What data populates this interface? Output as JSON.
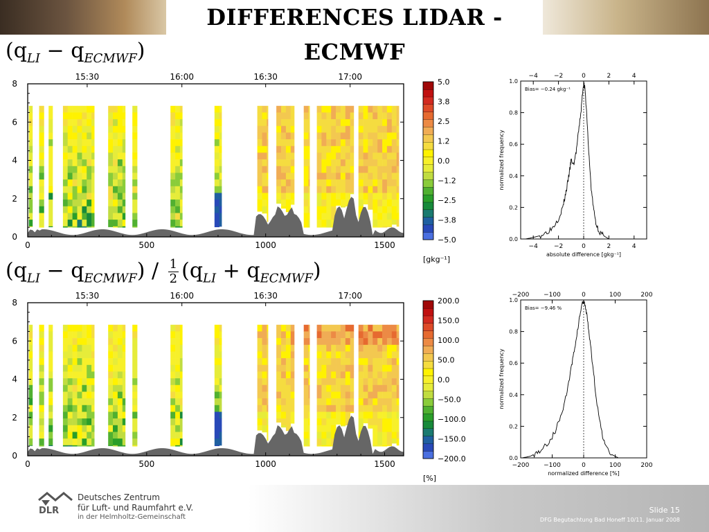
{
  "header": {
    "title": "DIFFERENCES LIDAR - ECMWF"
  },
  "formula_top": {
    "prefix": "(q",
    "sub1": "LI",
    "mid": " − q",
    "sub2": "ECMWF",
    "suffix": ")"
  },
  "formula_bottom": {
    "prefix": "(q",
    "sub1": "LI",
    "mid": " − q",
    "sub2": "ECMWF",
    "close": ")",
    "slash": " / ",
    "num": "1",
    "den": "2",
    "open2": "(q",
    "sub3": "LI",
    "plus": " + q",
    "sub4": "ECMWF",
    "close2": ")"
  },
  "footer": {
    "org_line1": "Deutsches Zentrum",
    "org_line2": "für Luft- und Raumfahrt e.V.",
    "org_line3": "in der Helmholtz-Gemeinschaft",
    "logo_text": "DLR",
    "slide_label": "Slide 15",
    "event": "DFG Begutachtung Bad Honeff 10/11. Januar 2008"
  },
  "colors": {
    "palette": [
      "#4a6fe0",
      "#2849b8",
      "#1f5fa0",
      "#1a7a70",
      "#178a3a",
      "#2a9e2a",
      "#50b030",
      "#8acc3a",
      "#c0dc40",
      "#e6ec3a",
      "#f7f02a",
      "#fff200",
      "#f5dc40",
      "#f3c850",
      "#f0ac55",
      "#ec8a45",
      "#e66a30",
      "#de4a28",
      "#d22a20",
      "#c01010",
      "#a00808"
    ],
    "terrain": "#666666"
  },
  "chart_data": [
    {
      "type": "heatmap",
      "title": "",
      "xlabel": "",
      "ylabel": "",
      "x_ticks": [
        "0",
        "500",
        "1000",
        "1500"
      ],
      "y_ticks": [
        "0",
        "2",
        "4",
        "6",
        "8"
      ],
      "time_ticks": [
        "15:30",
        "16:00",
        "16:30",
        "17:00"
      ],
      "colorbar_ticks": [
        "5.0",
        "3.8",
        "2.5",
        "1.2",
        "0.0",
        "−1.2",
        "−2.5",
        "−3.8",
        "−5.0"
      ],
      "colorbar_unit": "[gkg⁻¹]",
      "xlim": [
        0,
        1580
      ],
      "ylim": [
        0,
        8
      ],
      "column_groups_x": [
        [
          5,
          20
        ],
        [
          48,
          68
        ],
        [
          88,
          105
        ],
        [
          148,
          280
        ],
        [
          338,
          410
        ],
        [
          440,
          460
        ],
        [
          600,
          650
        ],
        [
          785,
          815
        ],
        [
          965,
          1010
        ],
        [
          1045,
          1120
        ],
        [
          1160,
          1185
        ],
        [
          1215,
          1370
        ],
        [
          1390,
          1560
        ]
      ]
    },
    {
      "type": "line",
      "title": "",
      "xlabel": "absolute difference [gkg⁻¹]",
      "ylabel": "normalized frequency",
      "annotation": "Bias= −0.24 gkg⁻¹",
      "xlim": [
        -5,
        5
      ],
      "ylim": [
        0,
        1
      ],
      "x_ticks": [
        "−4",
        "−2",
        "0",
        "2",
        "4"
      ],
      "y_ticks": [
        "0.0",
        "0.2",
        "0.4",
        "0.6",
        "0.8",
        "1.0"
      ],
      "x": [
        -4.6,
        -4.0,
        -3.5,
        -3.0,
        -2.5,
        -2.0,
        -1.7,
        -1.5,
        -1.3,
        -1.1,
        -1.0,
        -0.8,
        -0.6,
        -0.4,
        -0.2,
        -0.1,
        0.0,
        0.1,
        0.25,
        0.4,
        0.6,
        0.8,
        1.0,
        1.3,
        1.6,
        2.0,
        2.5
      ],
      "y": [
        0.0,
        0.01,
        0.02,
        0.04,
        0.07,
        0.13,
        0.19,
        0.26,
        0.34,
        0.44,
        0.5,
        0.47,
        0.55,
        0.68,
        0.82,
        0.92,
        0.99,
        0.95,
        0.78,
        0.55,
        0.32,
        0.18,
        0.09,
        0.04,
        0.02,
        0.0,
        0.0
      ]
    },
    {
      "type": "heatmap",
      "title": "",
      "xlabel": "",
      "ylabel": "",
      "x_ticks": [
        "0",
        "500",
        "1000",
        "1500"
      ],
      "y_ticks": [
        "0",
        "2",
        "4",
        "6",
        "8"
      ],
      "time_ticks": [
        "15:30",
        "16:00",
        "16:30",
        "17:00"
      ],
      "colorbar_ticks": [
        "200.0",
        "150.0",
        "100.0",
        "50.0",
        "0.0",
        "−50.0",
        "−100.0",
        "−150.0",
        "−200.0"
      ],
      "colorbar_unit": "[%]",
      "xlim": [
        0,
        1580
      ],
      "ylim": [
        0,
        8
      ],
      "column_groups_x": [
        [
          5,
          20
        ],
        [
          48,
          68
        ],
        [
          88,
          105
        ],
        [
          148,
          280
        ],
        [
          338,
          410
        ],
        [
          440,
          460
        ],
        [
          600,
          650
        ],
        [
          785,
          815
        ],
        [
          965,
          1010
        ],
        [
          1045,
          1120
        ],
        [
          1160,
          1185
        ],
        [
          1215,
          1370
        ],
        [
          1390,
          1560
        ]
      ]
    },
    {
      "type": "line",
      "title": "",
      "xlabel": "normalized difference [%]",
      "ylabel": "normalized frequency",
      "annotation": "Bias= −9.46 %",
      "xlim": [
        -200,
        200
      ],
      "ylim": [
        0,
        1
      ],
      "x_ticks": [
        "−200",
        "−100",
        "0",
        "100",
        "200"
      ],
      "y_ticks": [
        "0.0",
        "0.2",
        "0.4",
        "0.6",
        "0.8",
        "1.0"
      ],
      "x": [
        -195,
        -170,
        -150,
        -130,
        -110,
        -90,
        -70,
        -55,
        -40,
        -30,
        -20,
        -12,
        -6,
        0,
        5,
        12,
        20,
        30,
        40,
        55,
        70,
        90,
        110
      ],
      "y": [
        0.0,
        0.01,
        0.03,
        0.06,
        0.1,
        0.17,
        0.28,
        0.4,
        0.56,
        0.68,
        0.8,
        0.9,
        0.97,
        0.99,
        0.96,
        0.88,
        0.74,
        0.56,
        0.38,
        0.18,
        0.07,
        0.02,
        0.0
      ]
    }
  ]
}
